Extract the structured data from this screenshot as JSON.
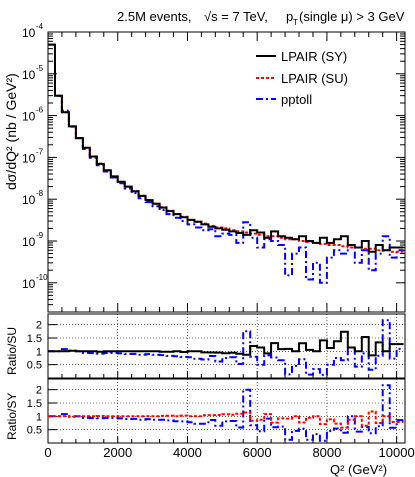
{
  "chart_data": {
    "type": "line",
    "title_parts": {
      "events": "2.5M events,",
      "sqrt": "√s = 7 TeV,",
      "pt_cut": "p",
      "pt_sub": "T",
      "pt_rest": "(single μ) > 3 GeV"
    },
    "xlabel": "Q² (GeV²)",
    "ylabel_main": "dσ/dQ² (nb / GeV²)",
    "ylabel_su": "Ratio/SU",
    "ylabel_sy": "Ratio/SY",
    "xlim": [
      0,
      10240
    ],
    "ylim_main": [
      2e-11,
      0.0001
    ],
    "ylim_ratio_su": [
      0,
      2.4
    ],
    "ylim_ratio_sy": [
      0,
      2.4
    ],
    "x_ticks": [
      "0",
      "2000",
      "4000",
      "6000",
      "8000",
      "10000"
    ],
    "y_ticks_main": [
      "10",
      "10",
      "10",
      "10",
      "10",
      "10",
      "10"
    ],
    "y_ticks_main_exp": [
      "-4",
      "-5",
      "-6",
      "-7",
      "-8",
      "-9",
      "-10"
    ],
    "y_ticks_ratio_su": [
      "0.5",
      "1",
      "1.5",
      "2"
    ],
    "y_ticks_ratio_sy": [
      "0.5",
      "1",
      "1.5",
      "2"
    ],
    "log_scale_y_main": true,
    "grid": "ratio panels",
    "legend_position": "top-right",
    "series": [
      {
        "name": "LPAIR (SY)",
        "color": "#000000",
        "style": "solid"
      },
      {
        "name": "LPAIR (SU)",
        "color": "#ff0000",
        "style": "dotted"
      },
      {
        "name": "pptoll",
        "color": "#0000ff",
        "style": "dashdot"
      }
    ],
    "bin_width": 200,
    "sy": [
      5e-05,
      3e-06,
      1.2e-06,
      5.5e-07,
      2.9e-07,
      1.7e-07,
      1.05e-07,
      7e-08,
      4.9e-08,
      3.5e-08,
      2.6e-08,
      2e-08,
      1.55e-08,
      1.2e-08,
      9.5e-09,
      7.8e-09,
      6.3e-09,
      5.2e-09,
      4.4e-09,
      3.7e-09,
      3.2e-09,
      2.9e-09,
      2.5e-09,
      2.2e-09,
      2e-09,
      1.85e-09,
      1.7e-09,
      1.55e-09,
      1.4e-09,
      1.8e-09,
      1.6e-09,
      1.2e-09,
      1.7e-09,
      1.3e-09,
      1.2e-09,
      1.1e-09,
      1.3e-09,
      1e-09,
      9e-10,
      1.2e-09,
      9e-10,
      1.1e-09,
      1.3e-09,
      8e-10,
      7e-10,
      1e-09,
      5.5e-10,
      8e-10,
      6e-10,
      7e-10,
      7e-10
    ],
    "su": [
      5e-05,
      3e-06,
      1.2e-06,
      5.4e-07,
      2.9e-07,
      1.7e-07,
      1.05e-07,
      7.1e-08,
      4.9e-08,
      3.5e-08,
      2.6e-08,
      2e-08,
      1.55e-08,
      1.2e-08,
      9.5e-09,
      7.8e-09,
      6.4e-09,
      5.3e-09,
      4.4e-09,
      3.8e-09,
      3.2e-09,
      2.9e-09,
      2.6e-09,
      2.3e-09,
      2.1e-09,
      2e-09,
      1.8e-09,
      1.7e-09,
      1.6e-09,
      1.5e-09,
      1.4e-09,
      1.3e-09,
      1.3e-09,
      1.2e-09,
      1.1e-09,
      1.1e-09,
      1e-09,
      9.5e-10,
      9e-10,
      8.5e-10,
      8e-10,
      8e-10,
      7.5e-10,
      7e-10,
      7e-10,
      6.5e-10,
      6.5e-10,
      6e-10,
      6e-10,
      5.5e-10,
      5.5e-10
    ],
    "pp": [
      5e-05,
      3e-06,
      1.3e-06,
      5.5e-07,
      2.9e-07,
      1.6e-07,
      9.8e-08,
      6.5e-08,
      4.6e-08,
      3.3e-08,
      2.4e-08,
      1.8e-08,
      1.4e-08,
      1.05e-08,
      8.5e-09,
      6.8e-09,
      5.5e-09,
      4.4e-09,
      3.6e-09,
      3e-09,
      2.5e-09,
      2.1e-09,
      1.8e-09,
      1.9e-09,
      1.3e-09,
      1.5e-09,
      1.4e-09,
      9e-10,
      2.8e-09,
      1.2e-09,
      7e-10,
      1.1e-09,
      1e-09,
      8e-10,
      1.5e-10,
      5e-10,
      7e-10,
      1.2e-10,
      3e-10,
      1e-10,
      4e-10,
      6e-10,
      5e-10,
      8e-10,
      3e-10,
      6e-10,
      2e-10,
      5e-10,
      1.3e-09,
      4e-10,
      6e-10
    ]
  }
}
